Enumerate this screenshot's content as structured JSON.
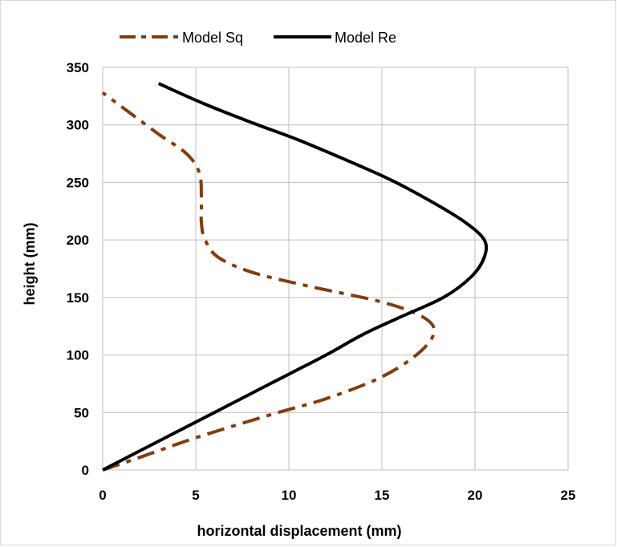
{
  "chart_data": {
    "type": "line",
    "title": "",
    "xlabel": "horizontal displacement (mm)",
    "ylabel": "height (mm)",
    "xlim": [
      0,
      25
    ],
    "ylim": [
      0,
      350
    ],
    "x_ticks": [
      "0",
      "5",
      "10",
      "15",
      "20",
      "25"
    ],
    "y_ticks": [
      "0",
      "50",
      "100",
      "150",
      "200",
      "250",
      "300",
      "350"
    ],
    "grid": true,
    "legend_position": "top",
    "series": [
      {
        "name": "Model Sq",
        "color": "#843C0C",
        "style": "dash-dot",
        "points": [
          [
            0,
            0
          ],
          [
            2,
            11
          ],
          [
            5,
            28
          ],
          [
            9,
            48
          ],
          [
            12,
            62
          ],
          [
            15,
            81
          ],
          [
            17,
            102
          ],
          [
            17.8,
            120
          ],
          [
            17.2,
            133
          ],
          [
            15,
            146
          ],
          [
            11,
            160
          ],
          [
            8,
            172
          ],
          [
            6.2,
            185
          ],
          [
            5.5,
            200
          ],
          [
            5.3,
            215
          ],
          [
            5.3,
            235
          ],
          [
            5.2,
            258
          ],
          [
            4.5,
            275
          ],
          [
            3,
            292
          ],
          [
            1.5,
            310
          ],
          [
            0,
            328
          ]
        ]
      },
      {
        "name": "Model Re",
        "color": "#000000",
        "style": "solid",
        "points": [
          [
            0,
            0
          ],
          [
            3,
            25
          ],
          [
            6,
            50
          ],
          [
            9,
            75
          ],
          [
            12,
            100
          ],
          [
            14,
            118
          ],
          [
            16,
            133
          ],
          [
            18.3,
            150
          ],
          [
            19.8,
            168
          ],
          [
            20.5,
            185
          ],
          [
            20.5,
            200
          ],
          [
            19.5,
            215
          ],
          [
            17.8,
            232
          ],
          [
            15.5,
            252
          ],
          [
            13,
            270
          ],
          [
            10.5,
            287
          ],
          [
            8,
            302
          ],
          [
            5.5,
            318
          ],
          [
            3,
            336
          ]
        ]
      }
    ]
  }
}
